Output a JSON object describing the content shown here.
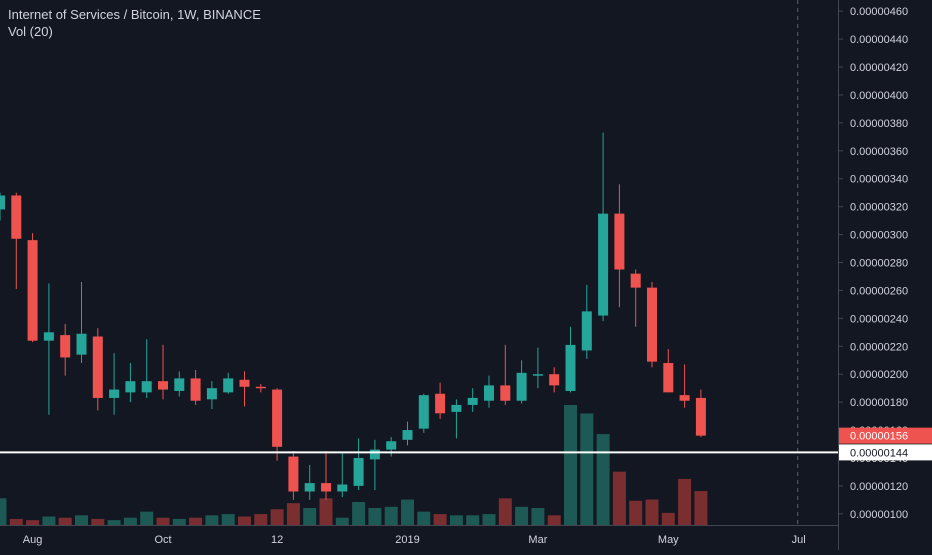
{
  "legend": {
    "title": "Internet of Services / Bitcoin, 1W, BINANCE",
    "indicator": "Vol (20)"
  },
  "colors": {
    "background": "#131722",
    "up": "#26a69a",
    "down": "#ef5350",
    "vol_up": "#1e5a55",
    "vol_down": "#7a2e30",
    "axis_text": "#d1d4dc",
    "axis_line": "#434651",
    "price_line": "#ffffff",
    "last_price_bg": "#ef5350"
  },
  "chart_data": {
    "type": "candlestick",
    "y_axis": {
      "ylim": [
        9.2e-08,
        4.68e-07
      ],
      "ticks": [
        "0.00000460",
        "0.00000440",
        "0.00000420",
        "0.00000400",
        "0.00000380",
        "0.00000360",
        "0.00000340",
        "0.00000320",
        "0.00000300",
        "0.00000280",
        "0.00000260",
        "0.00000240",
        "0.00000220",
        "0.00000200",
        "0.00000180",
        "0.00000160",
        "0.00000140",
        "0.00000120",
        "0.00000100"
      ],
      "tick_values": [
        4.6e-07,
        4.4e-07,
        4.2e-07,
        4e-07,
        3.8e-07,
        3.6e-07,
        3.4e-07,
        3.2e-07,
        3e-07,
        2.8e-07,
        2.6e-07,
        2.4e-07,
        2.2e-07,
        2e-07,
        1.8e-07,
        1.6e-07,
        1.4e-07,
        1.2e-07,
        1e-07
      ]
    },
    "x_axis": {
      "labels": [
        "Aug",
        "Oct",
        "12",
        "2019",
        "Mar",
        "May",
        "Jul"
      ],
      "label_index": [
        2,
        10,
        17,
        25,
        33,
        41,
        49
      ]
    },
    "future_marker_index": 49,
    "last_price": {
      "label": "0.00000156",
      "value": 1.56e-07
    },
    "horizontal_line": {
      "label": "0.00000144",
      "value": 1.44e-07
    },
    "candles": [
      {
        "o": 318,
        "h": 330,
        "l": 310,
        "c": 328,
        "v": 22
      },
      {
        "o": 328,
        "h": 330,
        "l": 261,
        "c": 297,
        "v": 5
      },
      {
        "o": 296,
        "h": 301,
        "l": 223,
        "c": 224,
        "v": 4
      },
      {
        "o": 224,
        "h": 265,
        "l": 171,
        "c": 230,
        "v": 7
      },
      {
        "o": 228,
        "h": 236,
        "l": 199,
        "c": 212,
        "v": 6
      },
      {
        "o": 214,
        "h": 266,
        "l": 208,
        "c": 229,
        "v": 8
      },
      {
        "o": 227,
        "h": 233,
        "l": 174,
        "c": 183,
        "v": 5
      },
      {
        "o": 183,
        "h": 215,
        "l": 171,
        "c": 189,
        "v": 4
      },
      {
        "o": 187,
        "h": 208,
        "l": 180,
        "c": 195,
        "v": 6
      },
      {
        "o": 187,
        "h": 225,
        "l": 183,
        "c": 195,
        "v": 11
      },
      {
        "o": 195,
        "h": 221,
        "l": 182,
        "c": 189,
        "v": 6
      },
      {
        "o": 188,
        "h": 202,
        "l": 184,
        "c": 197,
        "v": 5
      },
      {
        "o": 197,
        "h": 203,
        "l": 178,
        "c": 181,
        "v": 6
      },
      {
        "o": 182,
        "h": 195,
        "l": 175,
        "c": 190,
        "v": 8
      },
      {
        "o": 187,
        "h": 201,
        "l": 186,
        "c": 197,
        "v": 9
      },
      {
        "o": 196,
        "h": 202,
        "l": 177,
        "c": 191,
        "v": 7
      },
      {
        "o": 191,
        "h": 193,
        "l": 187,
        "c": 190,
        "v": 9
      },
      {
        "o": 189,
        "h": 190,
        "l": 138,
        "c": 148,
        "v": 13
      },
      {
        "o": 141,
        "h": 145,
        "l": 110,
        "c": 116,
        "v": 18
      },
      {
        "o": 116,
        "h": 135,
        "l": 110,
        "c": 122,
        "v": 14
      },
      {
        "o": 122,
        "h": 145,
        "l": 110,
        "c": 116,
        "v": 22
      },
      {
        "o": 116,
        "h": 144,
        "l": 112,
        "c": 121,
        "v": 6
      },
      {
        "o": 120,
        "h": 154,
        "l": 117,
        "c": 140,
        "v": 19
      },
      {
        "o": 139,
        "h": 153,
        "l": 117,
        "c": 146,
        "v": 14
      },
      {
        "o": 146,
        "h": 155,
        "l": 141,
        "c": 152,
        "v": 15
      },
      {
        "o": 153,
        "h": 166,
        "l": 149,
        "c": 160,
        "v": 21
      },
      {
        "o": 161,
        "h": 186,
        "l": 158,
        "c": 185,
        "v": 11
      },
      {
        "o": 186,
        "h": 194,
        "l": 168,
        "c": 172,
        "v": 9
      },
      {
        "o": 173,
        "h": 182,
        "l": 154,
        "c": 178,
        "v": 8
      },
      {
        "o": 178,
        "h": 190,
        "l": 173,
        "c": 183,
        "v": 8
      },
      {
        "o": 181,
        "h": 199,
        "l": 176,
        "c": 192,
        "v": 9
      },
      {
        "o": 192,
        "h": 221,
        "l": 178,
        "c": 181,
        "v": 22
      },
      {
        "o": 181,
        "h": 210,
        "l": 179,
        "c": 201,
        "v": 15
      },
      {
        "o": 200,
        "h": 219,
        "l": 190,
        "c": 200,
        "v": 14
      },
      {
        "o": 200,
        "h": 205,
        "l": 187,
        "c": 192,
        "v": 8
      },
      {
        "o": 188,
        "h": 234,
        "l": 187,
        "c": 221,
        "v": 99
      },
      {
        "o": 217,
        "h": 264,
        "l": 211,
        "c": 245,
        "v": 92
      },
      {
        "o": 242,
        "h": 373,
        "l": 238,
        "c": 315,
        "v": 75
      },
      {
        "o": 315,
        "h": 336,
        "l": 248,
        "c": 275,
        "v": 44
      },
      {
        "o": 272,
        "h": 275,
        "l": 234,
        "c": 262,
        "v": 20
      },
      {
        "o": 262,
        "h": 266,
        "l": 205,
        "c": 209,
        "v": 21
      },
      {
        "o": 208,
        "h": 218,
        "l": 187,
        "c": 187,
        "v": 10
      },
      {
        "o": 185,
        "h": 207,
        "l": 176,
        "c": 181,
        "v": 38
      },
      {
        "o": 183,
        "h": 189,
        "l": 155,
        "c": 156,
        "v": 28
      }
    ]
  }
}
